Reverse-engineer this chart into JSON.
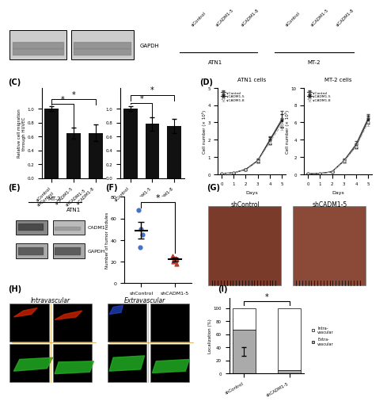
{
  "panel_C_ATN1": {
    "categories": [
      "siControl",
      "siCADM1-5",
      "siCADM1-8"
    ],
    "values": [
      1.0,
      0.65,
      0.65
    ],
    "errors": [
      0.03,
      0.08,
      0.12
    ],
    "ylabel": "Relative cell migration\nthrough HUVEC",
    "bar_color": "#111111"
  },
  "panel_C_MT2": {
    "categories": [
      "siControl",
      "siCADM1-5",
      "siCADM1-8"
    ],
    "values": [
      1.0,
      0.78,
      0.75
    ],
    "errors": [
      0.03,
      0.1,
      0.1
    ],
    "bar_color": "#111111"
  },
  "panel_D_ATN1": {
    "title": "ATN1 cells",
    "days": [
      0,
      1,
      2,
      3,
      4,
      5
    ],
    "siControl": [
      0.05,
      0.08,
      0.28,
      0.8,
      2.0,
      3.2
    ],
    "siCADM1_5": [
      0.05,
      0.08,
      0.28,
      0.78,
      1.95,
      3.1
    ],
    "siCADM1_8": [
      0.05,
      0.08,
      0.25,
      0.75,
      1.85,
      2.9
    ],
    "siControl_err": [
      0.01,
      0.02,
      0.05,
      0.1,
      0.2,
      0.45
    ],
    "siCADM1_5_err": [
      0.01,
      0.02,
      0.05,
      0.1,
      0.2,
      0.4
    ],
    "siCADM1_8_err": [
      0.01,
      0.02,
      0.05,
      0.1,
      0.18,
      0.35
    ],
    "ylabel": "Cell number (× 10⁵)",
    "xlabel": "Days",
    "ylim": 5
  },
  "panel_D_MT2": {
    "title": "MT-2 cells",
    "days": [
      0,
      1,
      2,
      3,
      4,
      5
    ],
    "siControl": [
      0.05,
      0.1,
      0.3,
      1.6,
      3.5,
      6.5
    ],
    "siCADM1_5": [
      0.05,
      0.1,
      0.28,
      1.55,
      3.3,
      6.3
    ],
    "siCADM1_8": [
      0.05,
      0.1,
      0.25,
      1.5,
      3.2,
      6.0
    ],
    "siControl_err": [
      0.01,
      0.02,
      0.06,
      0.2,
      0.35,
      0.5
    ],
    "siCADM1_5_err": [
      0.01,
      0.02,
      0.06,
      0.18,
      0.3,
      0.45
    ],
    "siCADM1_8_err": [
      0.01,
      0.02,
      0.05,
      0.15,
      0.28,
      0.4
    ],
    "ylabel": "Cell number (× 10⁵)",
    "xlabel": "Days",
    "ylim": 10
  },
  "panel_F": {
    "shControl_values": [
      68,
      50,
      45,
      33
    ],
    "shCADM1_values": [
      25,
      23,
      23,
      22,
      20,
      18
    ],
    "shControl_mean": 49,
    "shCADM1_mean": 22,
    "shControl_err": 8,
    "shCADM1_err": 2,
    "ylabel": "Number of tumor nodules",
    "xlabel_1": "shControl",
    "xlabel_2": "shCADM1-5",
    "color_control": "#4472c4",
    "color_shCADM1": "#c0392b",
    "ylim": [
      0,
      80
    ]
  },
  "panel_I": {
    "categories": [
      "shControl",
      "shCADM1-5"
    ],
    "intravascular_pct": [
      33,
      95
    ],
    "extravascular_pct": [
      67,
      5
    ],
    "shControl_extra_err": 7,
    "shCADM1_extra_err": 2,
    "ylabel": "Localization (%)",
    "color_intra": "#ffffff",
    "color_extra": "#aaaaaa",
    "ylim": [
      0,
      100
    ]
  },
  "label_C": "(C)",
  "label_D": "(D)",
  "label_E": "(E)",
  "label_F": "(F)",
  "label_G": "(G)",
  "label_H": "(H)",
  "label_I": "(I)",
  "bg_color": "#ffffff"
}
